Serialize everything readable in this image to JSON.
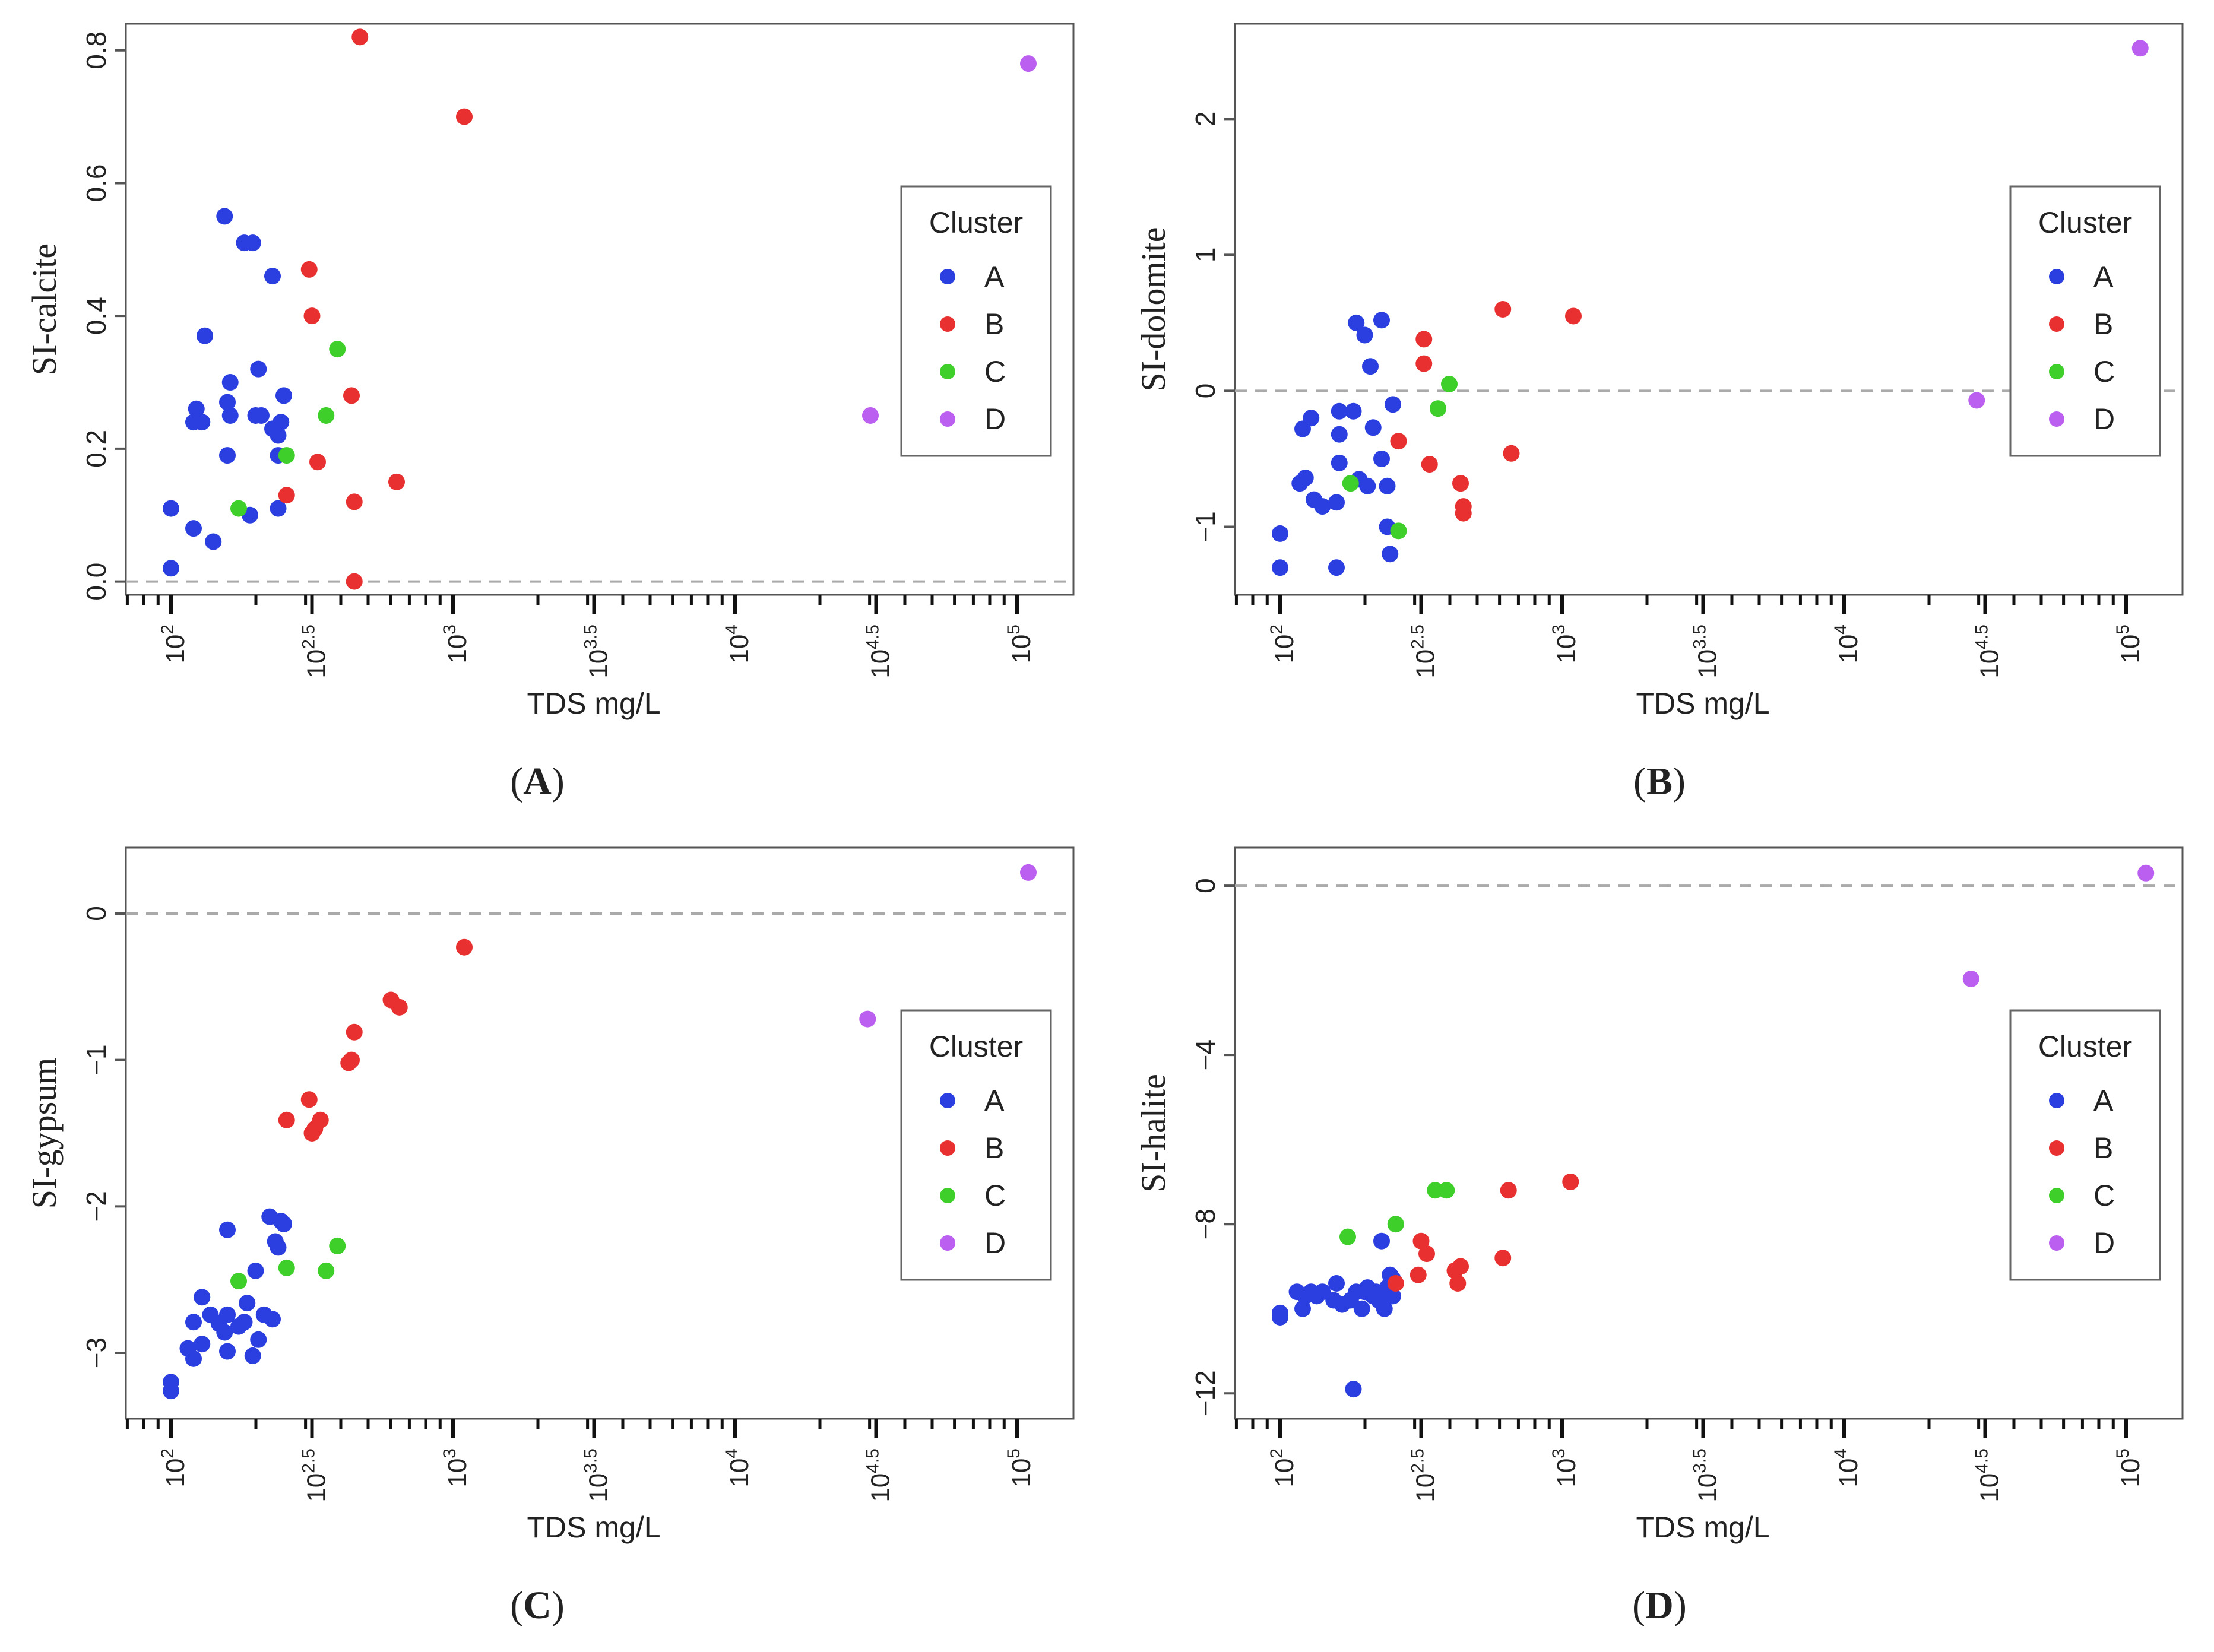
{
  "chart_data": [
    {
      "panel_label": "A",
      "type": "scatter",
      "xlabel": "TDS mg/L",
      "ylabel": "SI-calcite",
      "x_scale": "log10",
      "xlim": [
        1.84,
        5.2
      ],
      "ylim": [
        -0.02,
        0.84
      ],
      "x_ticks": [
        2,
        2.5,
        3,
        3.5,
        4,
        4.5,
        5
      ],
      "x_tick_labels": [
        {
          "base": "10",
          "exp": "2"
        },
        {
          "base": "10",
          "exp": "2.5"
        },
        {
          "base": "10",
          "exp": "3"
        },
        {
          "base": "10",
          "exp": "3.5"
        },
        {
          "base": "10",
          "exp": "4"
        },
        {
          "base": "10",
          "exp": "4.5"
        },
        {
          "base": "10",
          "exp": "5"
        }
      ],
      "y_ticks": [
        0.0,
        0.2,
        0.4,
        0.6,
        0.8
      ],
      "y_tick_labels": [
        "0.0",
        "0.2",
        "0.4",
        "0.6",
        "0.8"
      ],
      "reference_line_y": 0,
      "legend": {
        "title": "Cluster",
        "entries": [
          "A",
          "B",
          "C",
          "D"
        ],
        "position": "right"
      },
      "series": [
        {
          "name": "A",
          "color": "#2b3fe0",
          "points": [
            [
              2.0,
              0.11
            ],
            [
              2.0,
              0.02
            ],
            [
              2.08,
              0.08
            ],
            [
              2.08,
              0.24
            ],
            [
              2.09,
              0.26
            ],
            [
              2.11,
              0.24
            ],
            [
              2.12,
              0.37
            ],
            [
              2.15,
              0.06
            ],
            [
              2.19,
              0.55
            ],
            [
              2.2,
              0.19
            ],
            [
              2.2,
              0.27
            ],
            [
              2.21,
              0.3
            ],
            [
              2.21,
              0.25
            ],
            [
              2.26,
              0.51
            ],
            [
              2.28,
              0.1
            ],
            [
              2.29,
              0.51
            ],
            [
              2.3,
              0.25
            ],
            [
              2.31,
              0.32
            ],
            [
              2.32,
              0.25
            ],
            [
              2.36,
              0.46
            ],
            [
              2.36,
              0.23
            ],
            [
              2.38,
              0.19
            ],
            [
              2.38,
              0.11
            ],
            [
              2.39,
              0.24
            ],
            [
              2.4,
              0.28
            ],
            [
              2.38,
              0.22
            ]
          ]
        },
        {
          "name": "B",
          "color": "#e83030",
          "points": [
            [
              2.41,
              0.13
            ],
            [
              2.49,
              0.47
            ],
            [
              2.5,
              0.4
            ],
            [
              2.52,
              0.18
            ],
            [
              2.64,
              0.28
            ],
            [
              2.65,
              0.12
            ],
            [
              2.65,
              0.0
            ],
            [
              2.67,
              0.82
            ],
            [
              2.8,
              0.15
            ],
            [
              3.04,
              0.7
            ]
          ]
        },
        {
          "name": "C",
          "color": "#3fcf2a",
          "points": [
            [
              2.24,
              0.11
            ],
            [
              2.41,
              0.19
            ],
            [
              2.55,
              0.25
            ],
            [
              2.59,
              0.35
            ]
          ]
        },
        {
          "name": "D",
          "color": "#bb5ff0",
          "points": [
            [
              4.48,
              0.25
            ],
            [
              5.04,
              0.78
            ]
          ]
        }
      ]
    },
    {
      "panel_label": "B",
      "type": "scatter",
      "xlabel": "TDS mg/L",
      "ylabel": "SI-dolomite",
      "x_scale": "log10",
      "xlim": [
        1.84,
        5.2
      ],
      "ylim": [
        -1.5,
        2.7
      ],
      "x_ticks": [
        2,
        2.5,
        3,
        3.5,
        4,
        4.5,
        5
      ],
      "x_tick_labels": [
        {
          "base": "10",
          "exp": "2"
        },
        {
          "base": "10",
          "exp": "2.5"
        },
        {
          "base": "10",
          "exp": "3"
        },
        {
          "base": "10",
          "exp": "3.5"
        },
        {
          "base": "10",
          "exp": "4"
        },
        {
          "base": "10",
          "exp": "4.5"
        },
        {
          "base": "10",
          "exp": "5"
        }
      ],
      "y_ticks": [
        -1,
        0,
        1,
        2
      ],
      "y_tick_labels": [
        "−1",
        "0",
        "1",
        "2"
      ],
      "reference_line_y": 0,
      "legend": {
        "title": "Cluster",
        "entries": [
          "A",
          "B",
          "C",
          "D"
        ],
        "position": "right"
      },
      "series": [
        {
          "name": "A",
          "color": "#2b3fe0",
          "points": [
            [
              2.0,
              -1.05
            ],
            [
              2.0,
              -1.3
            ],
            [
              2.07,
              -0.68
            ],
            [
              2.08,
              -0.28
            ],
            [
              2.09,
              -0.64
            ],
            [
              2.11,
              -0.2
            ],
            [
              2.12,
              -0.8
            ],
            [
              2.15,
              -0.85
            ],
            [
              2.2,
              -0.82
            ],
            [
              2.21,
              -0.15
            ],
            [
              2.21,
              -0.32
            ],
            [
              2.21,
              -0.53
            ],
            [
              2.2,
              -1.3
            ],
            [
              2.26,
              -0.15
            ],
            [
              2.27,
              0.5
            ],
            [
              2.28,
              -0.65
            ],
            [
              2.3,
              0.41
            ],
            [
              2.31,
              -0.7
            ],
            [
              2.32,
              0.18
            ],
            [
              2.33,
              -0.27
            ],
            [
              2.36,
              0.52
            ],
            [
              2.36,
              -0.5
            ],
            [
              2.38,
              -0.7
            ],
            [
              2.38,
              -1.0
            ],
            [
              2.39,
              -1.2
            ],
            [
              2.4,
              -0.1
            ]
          ]
        },
        {
          "name": "B",
          "color": "#e83030",
          "points": [
            [
              2.42,
              -0.37
            ],
            [
              2.51,
              0.38
            ],
            [
              2.51,
              0.2
            ],
            [
              2.53,
              -0.54
            ],
            [
              2.64,
              -0.68
            ],
            [
              2.65,
              -0.9
            ],
            [
              2.65,
              -0.85
            ],
            [
              2.79,
              0.6
            ],
            [
              2.82,
              -0.46
            ],
            [
              3.04,
              0.55
            ]
          ]
        },
        {
          "name": "C",
          "color": "#3fcf2a",
          "points": [
            [
              2.25,
              -0.68
            ],
            [
              2.42,
              -1.03
            ],
            [
              2.56,
              -0.13
            ],
            [
              2.6,
              0.05
            ]
          ]
        },
        {
          "name": "D",
          "color": "#bb5ff0",
          "points": [
            [
              4.47,
              -0.07
            ],
            [
              5.05,
              2.52
            ]
          ]
        }
      ]
    },
    {
      "panel_label": "C",
      "type": "scatter",
      "xlabel": "TDS mg/L",
      "ylabel": "SI-gypsum",
      "x_scale": "log10",
      "xlim": [
        1.84,
        5.2
      ],
      "ylim": [
        -3.45,
        0.45
      ],
      "x_ticks": [
        2,
        2.5,
        3,
        3.5,
        4,
        4.5,
        5
      ],
      "x_tick_labels": [
        {
          "base": "10",
          "exp": "2"
        },
        {
          "base": "10",
          "exp": "2.5"
        },
        {
          "base": "10",
          "exp": "3"
        },
        {
          "base": "10",
          "exp": "3.5"
        },
        {
          "base": "10",
          "exp": "4"
        },
        {
          "base": "10",
          "exp": "4.5"
        },
        {
          "base": "10",
          "exp": "5"
        }
      ],
      "y_ticks": [
        -3,
        -2,
        -1,
        0
      ],
      "y_tick_labels": [
        "−3",
        "−2",
        "−1",
        "0"
      ],
      "reference_line_y": 0,
      "legend": {
        "title": "Cluster",
        "entries": [
          "A",
          "B",
          "C",
          "D"
        ],
        "position": "right"
      },
      "series": [
        {
          "name": "A",
          "color": "#2b3fe0",
          "points": [
            [
              2.0,
              -3.2
            ],
            [
              2.0,
              -3.26
            ],
            [
              2.06,
              -2.97
            ],
            [
              2.08,
              -2.79
            ],
            [
              2.08,
              -3.04
            ],
            [
              2.11,
              -2.62
            ],
            [
              2.11,
              -2.94
            ],
            [
              2.14,
              -2.74
            ],
            [
              2.17,
              -2.8
            ],
            [
              2.19,
              -2.86
            ],
            [
              2.2,
              -2.16
            ],
            [
              2.2,
              -2.74
            ],
            [
              2.2,
              -2.99
            ],
            [
              2.24,
              -2.82
            ],
            [
              2.26,
              -2.79
            ],
            [
              2.27,
              -2.66
            ],
            [
              2.29,
              -3.02
            ],
            [
              2.3,
              -2.44
            ],
            [
              2.31,
              -2.91
            ],
            [
              2.33,
              -2.74
            ],
            [
              2.35,
              -2.07
            ],
            [
              2.36,
              -2.77
            ],
            [
              2.37,
              -2.24
            ],
            [
              2.38,
              -2.28
            ],
            [
              2.39,
              -2.1
            ],
            [
              2.4,
              -2.12
            ]
          ]
        },
        {
          "name": "B",
          "color": "#e83030",
          "points": [
            [
              2.41,
              -1.41
            ],
            [
              2.49,
              -1.27
            ],
            [
              2.5,
              -1.5
            ],
            [
              2.51,
              -1.47
            ],
            [
              2.53,
              -1.41
            ],
            [
              2.63,
              -1.02
            ],
            [
              2.64,
              -1.0
            ],
            [
              2.65,
              -0.81
            ],
            [
              2.78,
              -0.59
            ],
            [
              2.81,
              -0.64
            ],
            [
              3.04,
              -0.23
            ]
          ]
        },
        {
          "name": "C",
          "color": "#3fcf2a",
          "points": [
            [
              2.24,
              -2.51
            ],
            [
              2.41,
              -2.42
            ],
            [
              2.55,
              -2.44
            ],
            [
              2.59,
              -2.27
            ]
          ]
        },
        {
          "name": "D",
          "color": "#bb5ff0",
          "points": [
            [
              4.47,
              -0.72
            ],
            [
              5.04,
              0.28
            ]
          ]
        }
      ]
    },
    {
      "panel_label": "D",
      "type": "scatter",
      "xlabel": "TDS mg/L",
      "ylabel": "SI-halite",
      "x_scale": "log10",
      "xlim": [
        1.84,
        5.2
      ],
      "ylim": [
        -12.6,
        0.9
      ],
      "x_ticks": [
        2,
        2.5,
        3,
        3.5,
        4,
        4.5,
        5
      ],
      "x_tick_labels": [
        {
          "base": "10",
          "exp": "2"
        },
        {
          "base": "10",
          "exp": "2.5"
        },
        {
          "base": "10",
          "exp": "3"
        },
        {
          "base": "10",
          "exp": "3.5"
        },
        {
          "base": "10",
          "exp": "4"
        },
        {
          "base": "10",
          "exp": "4.5"
        },
        {
          "base": "10",
          "exp": "5"
        }
      ],
      "y_ticks": [
        -12,
        -8,
        -4,
        0
      ],
      "y_tick_labels": [
        "−12",
        "−8",
        "−4",
        "0"
      ],
      "reference_line_y": 0,
      "legend": {
        "title": "Cluster",
        "entries": [
          "A",
          "B",
          "C",
          "D"
        ],
        "position": "right"
      },
      "series": [
        {
          "name": "A",
          "color": "#2b3fe0",
          "points": [
            [
              2.0,
              -10.1
            ],
            [
              2.0,
              -10.2
            ],
            [
              2.06,
              -9.6
            ],
            [
              2.08,
              -10.0
            ],
            [
              2.09,
              -9.7
            ],
            [
              2.11,
              -9.6
            ],
            [
              2.13,
              -9.7
            ],
            [
              2.15,
              -9.6
            ],
            [
              2.19,
              -9.8
            ],
            [
              2.2,
              -9.4
            ],
            [
              2.22,
              -9.9
            ],
            [
              2.25,
              -9.8
            ],
            [
              2.26,
              -11.9
            ],
            [
              2.27,
              -9.6
            ],
            [
              2.29,
              -10.0
            ],
            [
              2.3,
              -9.6
            ],
            [
              2.31,
              -9.5
            ],
            [
              2.33,
              -9.7
            ],
            [
              2.35,
              -9.8
            ],
            [
              2.36,
              -8.4
            ],
            [
              2.37,
              -10.0
            ],
            [
              2.38,
              -9.5
            ],
            [
              2.39,
              -9.2
            ],
            [
              2.4,
              -9.7
            ],
            [
              2.4,
              -9.3
            ],
            [
              2.34,
              -9.6
            ]
          ]
        },
        {
          "name": "B",
          "color": "#e83030",
          "points": [
            [
              2.41,
              -9.4
            ],
            [
              2.49,
              -9.2
            ],
            [
              2.5,
              -8.4
            ],
            [
              2.52,
              -8.7
            ],
            [
              2.62,
              -9.1
            ],
            [
              2.63,
              -9.4
            ],
            [
              2.64,
              -9.0
            ],
            [
              2.79,
              -8.8
            ],
            [
              2.81,
              -7.2
            ],
            [
              3.03,
              -7.0
            ]
          ]
        },
        {
          "name": "C",
          "color": "#3fcf2a",
          "points": [
            [
              2.24,
              -8.3
            ],
            [
              2.41,
              -8.0
            ],
            [
              2.55,
              -7.2
            ],
            [
              2.59,
              -7.2
            ]
          ]
        },
        {
          "name": "D",
          "color": "#bb5ff0",
          "points": [
            [
              4.45,
              -2.2
            ],
            [
              5.07,
              0.3
            ]
          ]
        }
      ]
    }
  ]
}
